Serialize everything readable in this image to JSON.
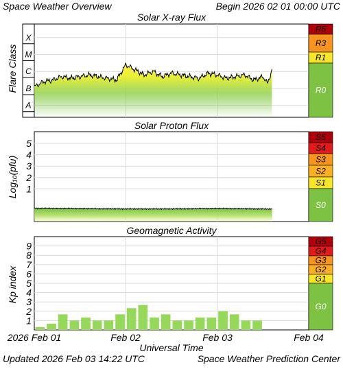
{
  "header": {
    "title": "Space Weather Overview",
    "begin": "Begin 2026 02 01 00:00 UTC"
  },
  "footer": {
    "updated": "Updated 2026 Feb 03 14:22 UTC",
    "center": "Space Weather Prediction Center"
  },
  "colors": {
    "scale_green": "#7dc242",
    "scale_yellow": "#f7e628",
    "scale_orange": "#f7941d",
    "scale_red": "#e31a1c",
    "scale_darkred": "#b0000a",
    "flux_green": "#71c13c",
    "flux_yellow": "#f4ea20",
    "bar_green": "#95d85a"
  },
  "chart_data": [
    {
      "type": "area",
      "title": "Solar X-ray Flux",
      "ylabel": "Flare Class",
      "y_classes": [
        "X",
        "M",
        "C",
        "B",
        "A"
      ],
      "scale_labels": [
        "R5",
        "R3",
        "R1",
        "R0"
      ],
      "x_ticks": [
        "2026 Feb 01",
        "Feb 02",
        "Feb 03",
        "Feb 04"
      ],
      "x_range_days": [
        0,
        3
      ],
      "series": [
        {
          "x": [
            0.0,
            0.1,
            0.2,
            0.3,
            0.4,
            0.5,
            0.6,
            0.7,
            0.8,
            0.9,
            1.0,
            1.1,
            1.2,
            1.3,
            1.4,
            1.5,
            1.6,
            1.7,
            1.8,
            1.9,
            2.0,
            2.1,
            2.2,
            2.3,
            2.4,
            2.5,
            2.55,
            2.6
          ],
          "y": [
            -6.9,
            -6.6,
            -6.5,
            -6.3,
            -6.4,
            -6.3,
            -6.2,
            -6.3,
            -6.4,
            -6.5,
            -5.6,
            -5.9,
            -6.2,
            -6.0,
            -6.3,
            -6.1,
            -6.2,
            -6.3,
            -6.4,
            -6.1,
            -6.2,
            -6.4,
            -6.3,
            -6.2,
            -6.5,
            -6.3,
            -6.7,
            -5.9
          ]
        }
      ]
    },
    {
      "type": "area",
      "title": "Solar Proton Flux",
      "ylabel": "Log₁₀(pfu)",
      "y_ticks": [
        1,
        2,
        3,
        4,
        5
      ],
      "scale_labels": [
        "S5",
        "S4",
        "S3",
        "S2",
        "S1",
        "S0"
      ],
      "x_range_days": [
        0,
        3
      ],
      "series": [
        {
          "x": [
            0.0,
            0.5,
            1.0,
            1.5,
            2.0,
            2.6
          ],
          "y": [
            -0.7,
            -0.73,
            -0.76,
            -0.76,
            -0.72,
            -0.77
          ]
        }
      ]
    },
    {
      "type": "bar",
      "title": "Geomagnetic Activity",
      "ylabel": "Kp index",
      "y_ticks": [
        1,
        2,
        3,
        4,
        5,
        6,
        7,
        8,
        9
      ],
      "ylim": [
        0,
        10
      ],
      "scale_labels": [
        "G5",
        "G4",
        "G3",
        "G2",
        "G1",
        "G0"
      ],
      "xlabel": "Universal Time",
      "x_range_days": [
        0,
        3
      ],
      "bar_width_hours": 3,
      "values": [
        0.3,
        0.67,
        1.67,
        1.0,
        1.33,
        1.0,
        1.0,
        1.67,
        2.33,
        2.67,
        1.33,
        1.67,
        1.0,
        1.0,
        1.33,
        1.33,
        2.0,
        1.67,
        1.0,
        1.0
      ]
    }
  ]
}
